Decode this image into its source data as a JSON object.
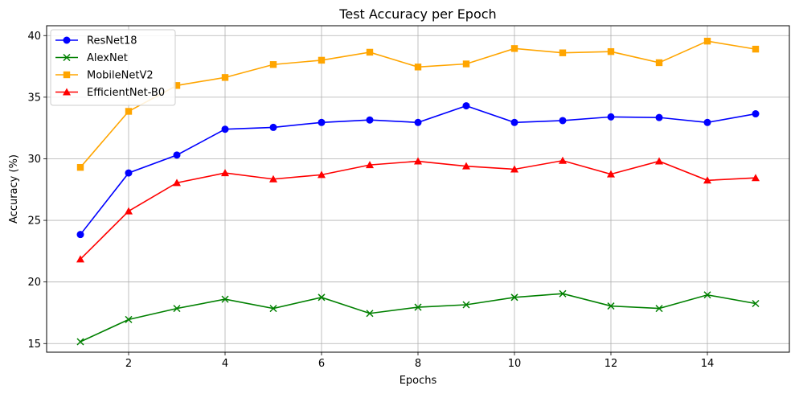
{
  "chart_data": {
    "type": "line",
    "title": "Test Accuracy per Epoch",
    "xlabel": "Epochs",
    "ylabel": "Accuracy (%)",
    "xlim": [
      0.3,
      15.7
    ],
    "ylim": [
      14.3,
      40.8
    ],
    "xticks": [
      2,
      4,
      6,
      8,
      10,
      12,
      14
    ],
    "yticks": [
      15,
      20,
      25,
      30,
      35,
      40
    ],
    "grid": true,
    "legend_position": "upper-left",
    "x": [
      1,
      2,
      3,
      4,
      5,
      6,
      7,
      8,
      9,
      10,
      11,
      12,
      13,
      14,
      15
    ],
    "series": [
      {
        "name": "ResNet18",
        "color": "#0000ff",
        "marker": "circle",
        "values": [
          23.85,
          28.85,
          30.3,
          32.4,
          32.55,
          32.95,
          33.15,
          32.95,
          34.3,
          32.95,
          33.1,
          33.4,
          33.35,
          32.95,
          33.65
        ]
      },
      {
        "name": "AlexNet",
        "color": "#008000",
        "marker": "x",
        "values": [
          15.15,
          16.95,
          17.85,
          18.6,
          17.85,
          18.75,
          17.45,
          17.95,
          18.15,
          18.75,
          19.05,
          18.05,
          17.85,
          18.95,
          18.25
        ]
      },
      {
        "name": "MobileNetV2",
        "color": "#ffa500",
        "marker": "square",
        "values": [
          29.3,
          33.85,
          35.95,
          36.6,
          37.65,
          38.0,
          38.65,
          37.45,
          37.7,
          38.95,
          38.6,
          38.7,
          37.8,
          39.55,
          38.9
        ]
      },
      {
        "name": "EfficientNet-B0",
        "color": "#ff0000",
        "marker": "triangle",
        "values": [
          21.85,
          25.75,
          28.05,
          28.85,
          28.35,
          28.7,
          29.5,
          29.8,
          29.4,
          29.15,
          29.85,
          28.75,
          29.8,
          28.25,
          28.45
        ]
      }
    ]
  }
}
